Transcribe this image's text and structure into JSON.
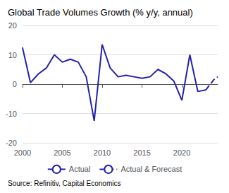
{
  "chart_data": {
    "type": "line",
    "title": "Global Trade Volumes Growth (% y/y, annual)",
    "source": "Source: Refinitiv, Capital Economics",
    "xlim": [
      2000,
      2024.5
    ],
    "xticks": [
      2000,
      2005,
      2010,
      2015,
      2020
    ],
    "ylim": [
      -20,
      20
    ],
    "yticks": [
      -20,
      -10,
      0,
      10,
      20
    ],
    "grid": true,
    "legend": "bottom",
    "series": [
      {
        "name": "Actual",
        "color": "#2222aa",
        "line_style": "solid",
        "x": [
          2000,
          2001,
          2002,
          2003,
          2004,
          2005,
          2006,
          2007,
          2008,
          2009,
          2010,
          2011,
          2012,
          2013,
          2014,
          2015,
          2016,
          2017,
          2018,
          2019,
          2020,
          2021,
          2022,
          2023
        ],
        "values": [
          12.5,
          0.5,
          3.5,
          5.5,
          10.0,
          7.5,
          8.5,
          7.5,
          2.5,
          -12.5,
          13.5,
          5.5,
          2.5,
          3.0,
          2.5,
          2.0,
          2.5,
          5.0,
          3.5,
          1.0,
          -5.5,
          10.0,
          -2.5,
          -2.0
        ]
      },
      {
        "name": "Actual & Forecast",
        "color": "#2222aa",
        "line_style": "dashed",
        "x": [
          2023,
          2024,
          2024.5
        ],
        "values": [
          -2.0,
          1.5,
          2.5
        ]
      }
    ]
  }
}
